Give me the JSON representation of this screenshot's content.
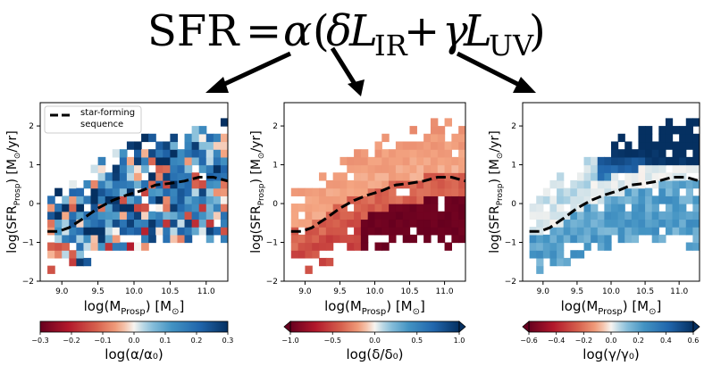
{
  "equation": {
    "lhs": "SFR",
    "eq": "=",
    "alpha": "α",
    "open": "(",
    "delta": "δ",
    "L1": "L",
    "sub1": "IR",
    "plus": "+",
    "gamma": "γ",
    "L2": "L",
    "sub2": "UV",
    "close": ")"
  },
  "colors": {
    "cool": "#2c5aa0",
    "neutral": "#f3f0ee",
    "warm": "#b23a24",
    "dark_red": "#67001f",
    "dark_blue": "#0b1f5c",
    "sfs_line": "#000000"
  },
  "chart_data": [
    {
      "type": "heatmap",
      "name": "alpha",
      "xlabel": "log(M_Prosp) [M_sun]",
      "ylabel": "log(SFR_Prosp) [M_sun/yr]",
      "xlim": [
        8.7,
        11.3
      ],
      "ylim": [
        -2,
        2.6
      ],
      "xticks": [
        "9.0",
        "9.5",
        "10.0",
        "10.5",
        "11.0"
      ],
      "yticks": [
        "-2",
        "-1",
        "0",
        "1",
        "2"
      ],
      "legend": {
        "label_line1": "star-forming",
        "label_line2": "sequence",
        "position": "top-left"
      },
      "colorbar": {
        "label": "log(α/α₀)",
        "min": -0.3,
        "max": 0.3,
        "ticks": [
          "-0.3",
          "-0.2",
          "-0.1",
          "0.0",
          "0.1",
          "0.2",
          "0.3"
        ],
        "extend": "neither"
      },
      "cmap": "RdBu",
      "bias": 0.1,
      "noise": 0.22
    },
    {
      "type": "heatmap",
      "name": "delta",
      "xlabel": "log(M_Prosp) [M_sun]",
      "ylabel": "log(SFR_Prosp) [M_sun/yr]",
      "xlim": [
        8.7,
        11.3
      ],
      "ylim": [
        -2,
        2.6
      ],
      "xticks": [
        "9.0",
        "9.5",
        "10.0",
        "10.5",
        "11.0"
      ],
      "yticks": [
        "-2",
        "-1",
        "0",
        "1",
        "2"
      ],
      "colorbar": {
        "label": "log(δ/δ₀)",
        "min": -1.0,
        "max": 1.0,
        "ticks": [
          "-1.0",
          "-0.5",
          "0.0",
          "0.5",
          "1.0"
        ],
        "extend": "both"
      },
      "cmap": "RdBu",
      "bias": 0.0,
      "noise": 0.05
    },
    {
      "type": "heatmap",
      "name": "gamma",
      "xlabel": "log(M_Prosp) [M_sun]",
      "ylabel": "log(SFR_Prosp) [M_sun/yr]",
      "xlim": [
        8.7,
        11.3
      ],
      "ylim": [
        -2,
        2.6
      ],
      "xticks": [
        "9.0",
        "9.5",
        "10.0",
        "10.5",
        "11.0"
      ],
      "yticks": [
        "-2",
        "-1",
        "0",
        "1",
        "2"
      ],
      "colorbar": {
        "label": "log(γ/γ₀)",
        "min": -0.6,
        "max": 0.6,
        "ticks": [
          "-0.6",
          "-0.4",
          "-0.2",
          "0.0",
          "0.2",
          "0.4",
          "0.6"
        ],
        "extend": "both"
      },
      "cmap": "RdBu",
      "bias": 0.0,
      "noise": 0.1
    }
  ],
  "sfs_curve": {
    "x": [
      8.8,
      8.95,
      9.1,
      9.3,
      9.5,
      9.7,
      9.9,
      10.1,
      10.3,
      10.5,
      10.7,
      10.9,
      11.1,
      11.3
    ],
    "y": [
      -0.72,
      -0.72,
      -0.62,
      -0.38,
      -0.12,
      0.08,
      0.22,
      0.33,
      0.48,
      0.52,
      0.58,
      0.68,
      0.68,
      0.58
    ]
  },
  "bin_size": {
    "mass": 0.1,
    "sfr": 0.2
  }
}
